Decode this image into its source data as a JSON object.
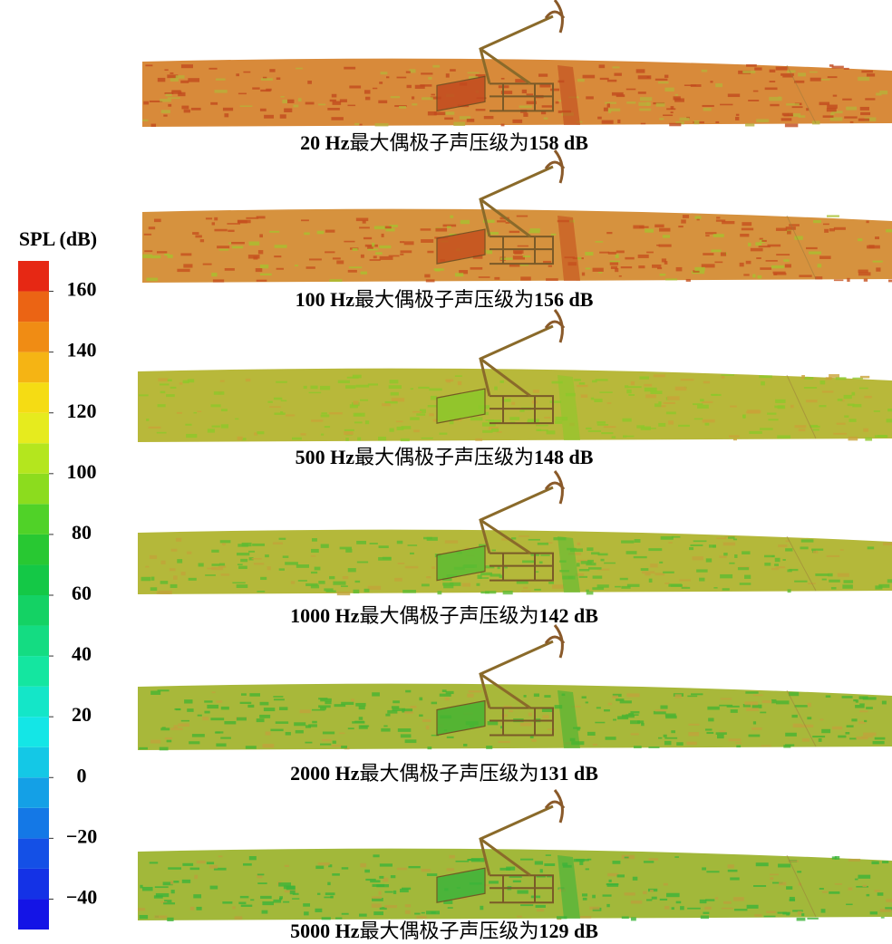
{
  "colorbar": {
    "title": "SPL (dB)",
    "range": [
      -50,
      170
    ],
    "ticks": [
      160,
      140,
      120,
      100,
      80,
      60,
      40,
      20,
      0,
      {
        "value": -20,
        "label": "−20"
      },
      {
        "value": -40,
        "label": "−40"
      }
    ],
    "colors": [
      "#1414e6",
      "#1432e6",
      "#1450e6",
      "#1478e6",
      "#14a0e6",
      "#14c8e6",
      "#14e6e6",
      "#14e6c8",
      "#14e6a0",
      "#14dc82",
      "#14d264",
      "#14c846",
      "#28c832",
      "#50d228",
      "#8cdc1e",
      "#b4e61e",
      "#e6eb1e",
      "#f5dc14",
      "#f5b414",
      "#f08c14",
      "#eb6414",
      "#e62814"
    ]
  },
  "panels": [
    {
      "frequency": "20 Hz",
      "text": "最大偶极子声压级为",
      "level": "158 dB"
    },
    {
      "frequency": "100 Hz",
      "text": "最大偶极子声压级为",
      "level": "156 dB"
    },
    {
      "frequency": "500 Hz",
      "text": "最大偶极子声压级为",
      "level": "148 dB"
    },
    {
      "frequency": "1000 Hz",
      "text": "最大偶极子声压级为",
      "level": "142 dB"
    },
    {
      "frequency": "2000 Hz",
      "text": "最大偶极子声压级为",
      "level": "131 dB"
    },
    {
      "frequency": "5000 Hz",
      "text": "最大偶极子声压级为",
      "level": "129 dB"
    }
  ]
}
